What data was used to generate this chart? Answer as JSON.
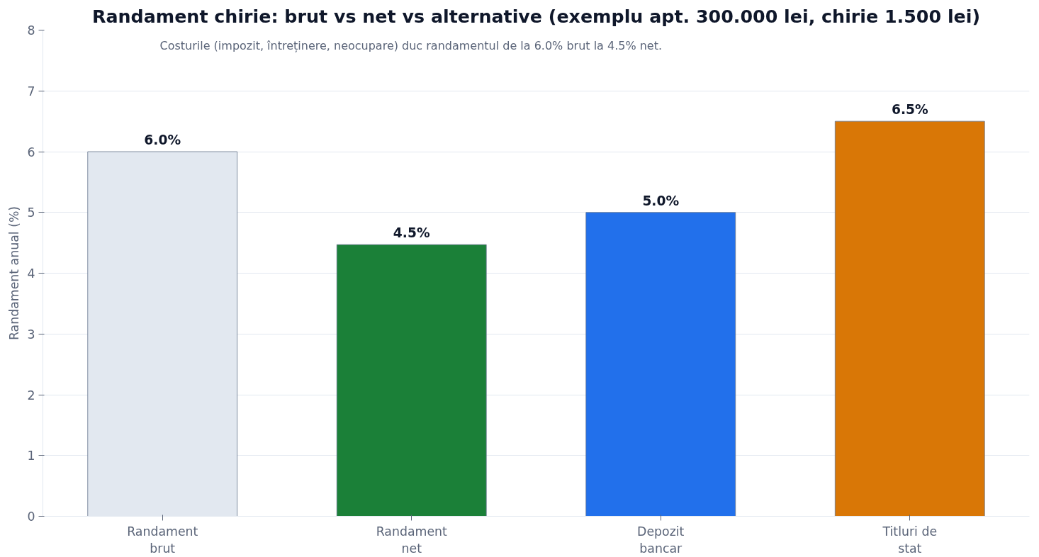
{
  "chart_data": {
    "type": "bar",
    "title": "Randament chirie: brut vs net vs alternative (exemplu apt. 300.000 lei, chirie 1.500 lei)",
    "ylabel": "Randament anual (%)",
    "categories": [
      "Randament\nbrut",
      "Randament\nnet",
      "Depozit\nbancar",
      "Titluri de\nstat"
    ],
    "values": [
      6.0,
      4.47,
      5.0,
      6.5
    ],
    "colors": [
      "#e2e8f0",
      "#1b8038",
      "#2270eb",
      "#d97706"
    ],
    "value_labels": [
      "6.0%",
      "4.5%",
      "5.0%",
      "6.5%"
    ],
    "annotations": [
      "Costurile (impozit, întreținere, neocupare) duc randamentul de la 6.0% brut la 4.5% net."
    ],
    "ylim": [
      0,
      8
    ],
    "yticks": [
      0,
      1,
      2,
      3,
      4,
      5,
      6,
      7,
      8
    ],
    "grid": "y"
  }
}
